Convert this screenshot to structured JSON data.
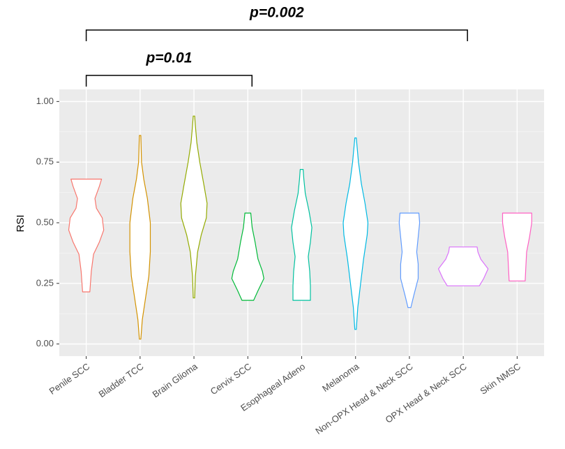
{
  "chart_data": {
    "type": "violin",
    "y_label": "RSI",
    "ylim": [
      -0.05,
      1.05
    ],
    "yticks": [
      {
        "value": 0,
        "label": "0.00"
      },
      {
        "value": 0.25,
        "label": "0.25"
      },
      {
        "value": 0.5,
        "label": "0.50"
      },
      {
        "value": 0.75,
        "label": "0.75"
      },
      {
        "value": 1,
        "label": "1.00"
      }
    ],
    "grid": true,
    "categories": [
      "Penile SCC",
      "Bladder TCC",
      "Brain Glioma",
      "Cervix SCC",
      "Esophageal Adeno",
      "Melanoma",
      "Non-OPX Head & Neck SCC",
      "OPX Head & Neck SCC",
      "Skin NMSC"
    ],
    "series": [
      {
        "color": "#F8766D",
        "levels": [
          0.215,
          0.3,
          0.37,
          0.42,
          0.47,
          0.52,
          0.56,
          0.6,
          0.65,
          0.68
        ],
        "density": [
          5,
          7,
          10,
          18,
          24,
          22,
          14,
          12,
          18,
          21
        ]
      },
      {
        "color": "#D39200",
        "levels": [
          0.02,
          0.1,
          0.2,
          0.28,
          0.38,
          0.5,
          0.6,
          0.68,
          0.75,
          0.86
        ],
        "density": [
          1,
          3,
          8,
          12,
          14,
          14,
          10,
          5,
          2,
          1
        ]
      },
      {
        "color": "#93AA00",
        "levels": [
          0.19,
          0.28,
          0.38,
          0.45,
          0.52,
          0.58,
          0.65,
          0.75,
          0.83,
          0.9,
          0.94
        ],
        "density": [
          1,
          2,
          5,
          10,
          17,
          18,
          14,
          8,
          4,
          2,
          1
        ]
      },
      {
        "color": "#00BA38",
        "levels": [
          0.18,
          0.22,
          0.27,
          0.3,
          0.35,
          0.42,
          0.48,
          0.54
        ],
        "density": [
          8,
          14,
          22,
          20,
          14,
          10,
          6,
          4
        ]
      },
      {
        "color": "#00C19F",
        "levels": [
          0.18,
          0.24,
          0.3,
          0.36,
          0.42,
          0.48,
          0.55,
          0.62,
          0.68,
          0.72
        ],
        "density": [
          12,
          12,
          11,
          9,
          12,
          14,
          10,
          5,
          3,
          2
        ]
      },
      {
        "color": "#00B9E3",
        "levels": [
          0.06,
          0.15,
          0.25,
          0.35,
          0.45,
          0.5,
          0.58,
          0.66,
          0.75,
          0.85
        ],
        "density": [
          1,
          3,
          7,
          11,
          16,
          17,
          13,
          8,
          4,
          1
        ]
      },
      {
        "color": "#619CFF",
        "levels": [
          0.15,
          0.2,
          0.27,
          0.33,
          0.38,
          0.44,
          0.5,
          0.54
        ],
        "density": [
          2,
          6,
          12,
          12,
          10,
          12,
          14,
          13
        ]
      },
      {
        "color": "#DB72FB",
        "levels": [
          0.24,
          0.27,
          0.31,
          0.35,
          0.38,
          0.4
        ],
        "density": [
          22,
          28,
          34,
          24,
          20,
          19
        ]
      },
      {
        "color": "#FF61C3",
        "levels": [
          0.26,
          0.32,
          0.38,
          0.44,
          0.5,
          0.54
        ],
        "density": [
          11,
          12,
          13,
          17,
          20,
          20
        ]
      }
    ],
    "annotations": [
      {
        "label": "p=0.01",
        "from": "Penile SCC",
        "to": "Cervix SCC"
      },
      {
        "label": "p=0.002",
        "from": "Penile SCC",
        "to": "OPX Head & Neck SCC"
      }
    ]
  }
}
